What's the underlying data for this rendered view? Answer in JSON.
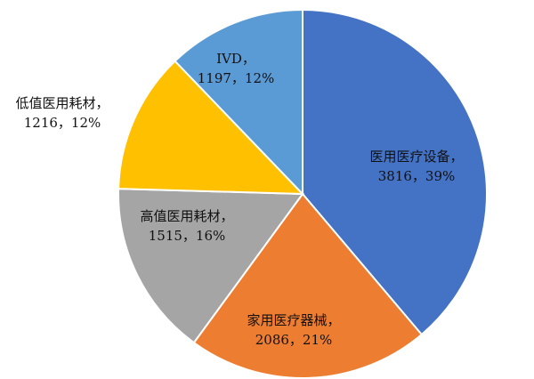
{
  "chart_data": {
    "type": "pie",
    "categories": [
      "医用医疗设备，",
      "家用医疗器械，",
      "高值医用耗材，",
      "低值医用耗材，",
      "IVD，"
    ],
    "values": [
      3816,
      2086,
      1515,
      1216,
      1197
    ],
    "value_labels": [
      "3816，39%",
      "2086，21%",
      "1515，16%",
      "1216，12%",
      "1197，12%"
    ],
    "colors": [
      "#4472c4",
      "#ed7d31",
      "#a5a5a5",
      "#ffc000",
      "#5b9bd5"
    ]
  }
}
